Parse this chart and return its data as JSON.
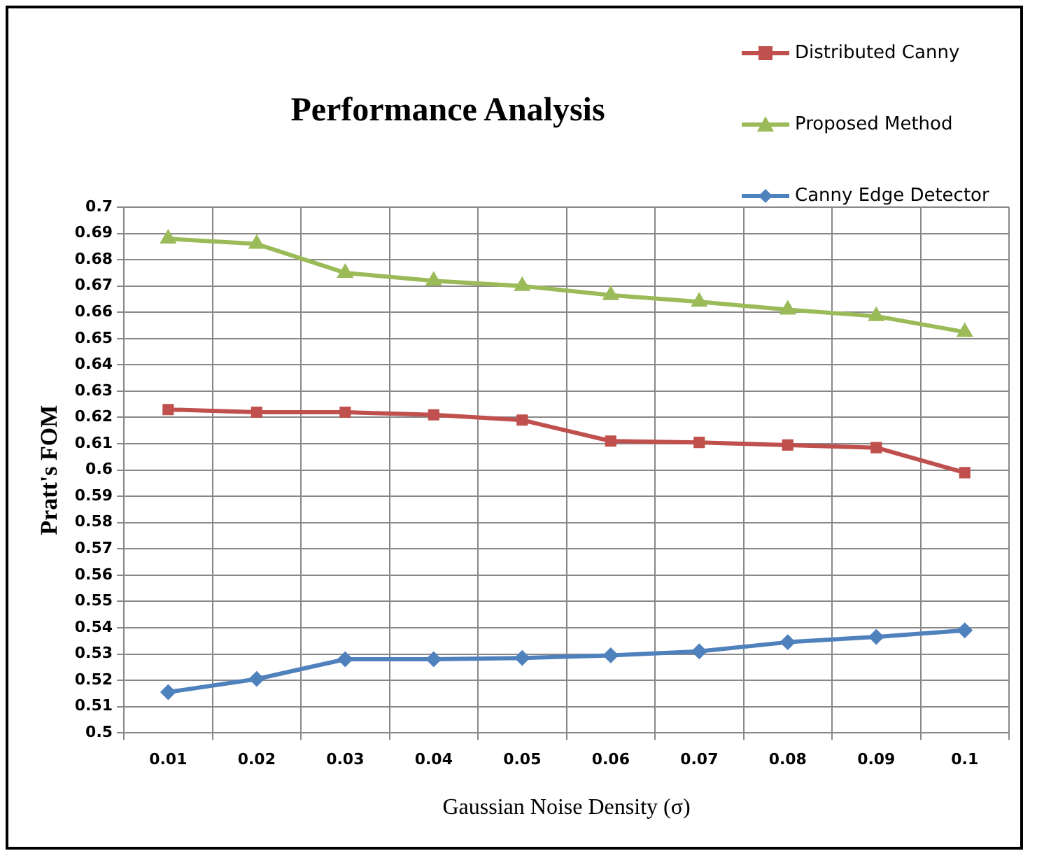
{
  "chart_data": {
    "type": "line",
    "title": "Performance Analysis",
    "xlabel": "Gaussian Noise Density (σ)",
    "ylabel": "Pratt's FOM",
    "categories": [
      "0.01",
      "0.02",
      "0.03",
      "0.04",
      "0.05",
      "0.06",
      "0.07",
      "0.08",
      "0.09",
      "0.1"
    ],
    "series": [
      {
        "name": "Distributed Canny",
        "color": "#c0504d",
        "marker": "square",
        "values": [
          0.623,
          0.622,
          0.622,
          0.621,
          0.619,
          0.611,
          0.6105,
          0.6095,
          0.6085,
          0.599
        ]
      },
      {
        "name": "Proposed Method",
        "color": "#9bbb59",
        "marker": "triangle",
        "values": [
          0.688,
          0.686,
          0.675,
          0.672,
          0.67,
          0.6665,
          0.664,
          0.661,
          0.6585,
          0.6525
        ]
      },
      {
        "name": "Canny Edge Detector",
        "color": "#4f81bd",
        "marker": "diamond",
        "values": [
          0.5155,
          0.5205,
          0.528,
          0.528,
          0.5285,
          0.5295,
          0.531,
          0.5345,
          0.5365,
          0.539
        ]
      }
    ],
    "ylim": [
      0.5,
      0.7
    ],
    "yticks": [
      0.5,
      0.51,
      0.52,
      0.53,
      0.54,
      0.55,
      0.56,
      0.57,
      0.58,
      0.59,
      0.6,
      0.61,
      0.62,
      0.63,
      0.64,
      0.65,
      0.66,
      0.67,
      0.68,
      0.69,
      0.7
    ],
    "grid": true,
    "legend": "top right",
    "line_style": "solid"
  }
}
